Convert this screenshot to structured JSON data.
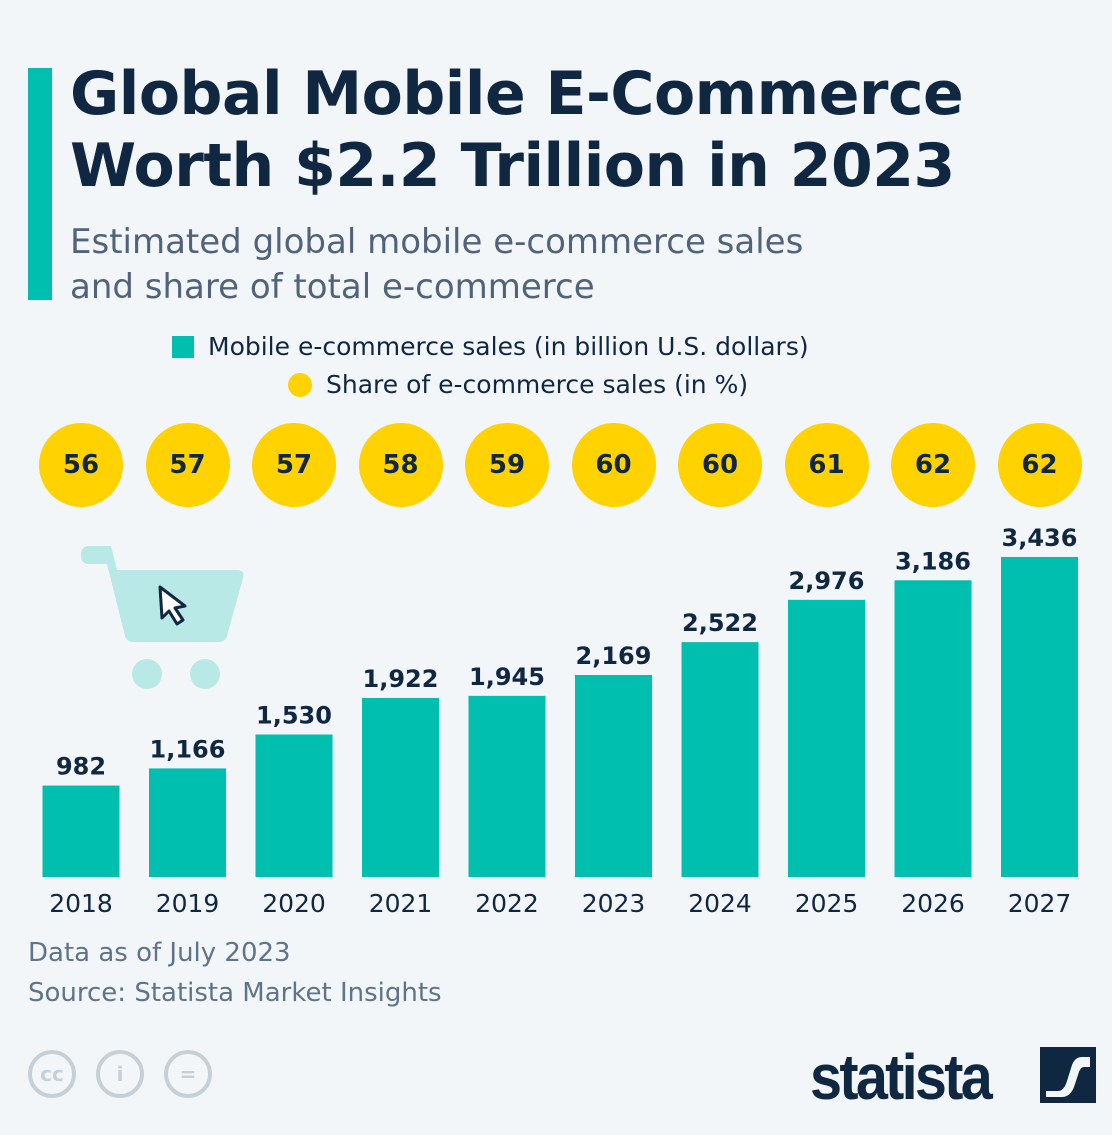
{
  "title_line1": "Global Mobile E-Commerce",
  "title_line2": "Worth $2.2 Trillion in 2023",
  "subtitle_line1": "Estimated global mobile e-commerce sales",
  "subtitle_line2": "and share of total e-commerce",
  "chart_data": {
    "type": "bar",
    "categories": [
      "2018",
      "2019",
      "2020",
      "2021",
      "2022",
      "2023",
      "2024",
      "2025",
      "2026",
      "2027"
    ],
    "series": [
      {
        "name": "Mobile e-commerce sales (in billion U.S. dollars)",
        "values": [
          982,
          1166,
          1530,
          1922,
          1945,
          2169,
          2522,
          2976,
          3186,
          3436
        ],
        "labels": [
          "982",
          "1,166",
          "1,530",
          "1,922",
          "1,945",
          "2,169",
          "2,522",
          "2,976",
          "3,186",
          "3,436"
        ],
        "color": "#00bfae"
      },
      {
        "name": "Share of e-commerce sales (in %)",
        "values": [
          56,
          57,
          57,
          58,
          59,
          60,
          60,
          61,
          62,
          62
        ],
        "color": "#ffd200"
      }
    ],
    "ylim": [
      0,
      3436
    ],
    "grid": false,
    "legend": "top-center"
  },
  "footer": {
    "note": "Data as of July 2023",
    "source": "Source: Statista Market Insights"
  },
  "license_icons": [
    "cc",
    "i",
    "="
  ],
  "logo": "statista",
  "colors": {
    "bar": "#00bfae",
    "share": "#ffd200",
    "text": "#0f2741",
    "background": "#f3f6f9"
  }
}
